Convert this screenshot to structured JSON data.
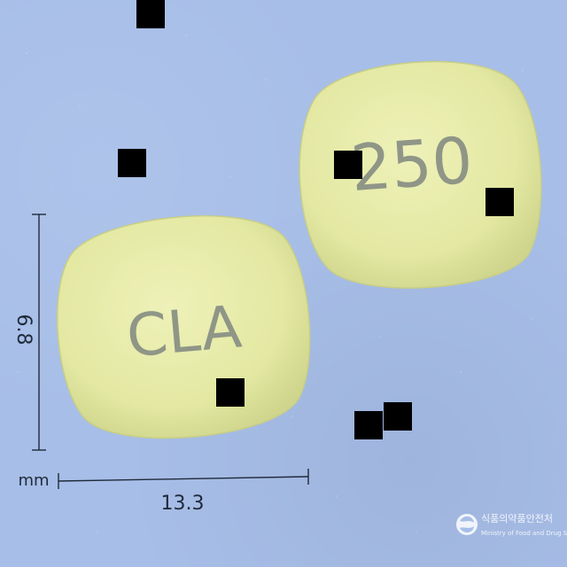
{
  "colors": {
    "background": "#a7bee8",
    "tablet": "#e6eaa8",
    "imprint": "#8f9687"
  },
  "tablet_front": {
    "imprint": "CLA"
  },
  "tablet_back": {
    "imprint": "250"
  },
  "dimensions": {
    "width": "13.3",
    "height": "6.8",
    "unit": "mm"
  },
  "watermark": {
    "korean": "식품의약품안전처",
    "english": "Ministry of Food and Drug Safety"
  }
}
